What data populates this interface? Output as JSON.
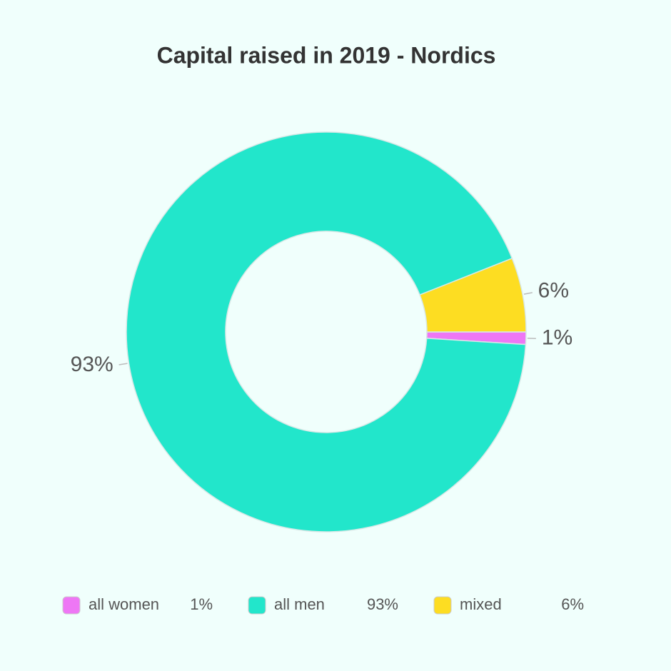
{
  "chart_data": {
    "type": "donut",
    "title": "Capital raised in 2019 - Nordics",
    "categories": [
      "all women",
      "all men",
      "mixed"
    ],
    "values": [
      1,
      93,
      6
    ],
    "value_labels": [
      "1%",
      "93%",
      "6%"
    ],
    "colors": [
      "#ee77f5",
      "#22e6cb",
      "#fddd22"
    ],
    "legend": "bottom"
  }
}
